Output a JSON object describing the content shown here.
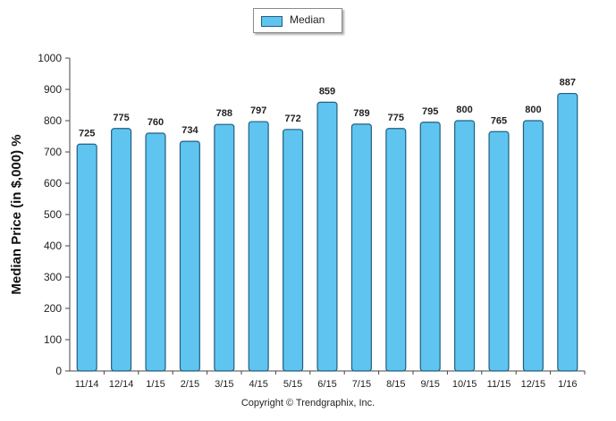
{
  "legend": {
    "label": "Median",
    "color": "#5fc4f0"
  },
  "footer": {
    "copyright": "Copyright © Trendgraphix, Inc."
  },
  "chart_data": {
    "type": "bar",
    "ylabel": "Median Price (in $,000) %",
    "ylim": [
      0,
      1000
    ],
    "yticks": [
      0,
      100,
      200,
      300,
      400,
      500,
      600,
      700,
      800,
      900,
      1000
    ],
    "categories": [
      "11/14",
      "12/14",
      "1/15",
      "2/15",
      "3/15",
      "4/15",
      "5/15",
      "6/15",
      "7/15",
      "8/15",
      "9/15",
      "10/15",
      "11/15",
      "12/15",
      "1/16"
    ],
    "series": [
      {
        "name": "Median",
        "values": [
          725,
          775,
          760,
          734,
          788,
          797,
          772,
          859,
          789,
          775,
          795,
          800,
          765,
          800,
          887
        ]
      }
    ],
    "data_labels": true,
    "grid": false,
    "legend_position": "top-center",
    "bar_color": "#5fc4f0",
    "bar_edge_color": "#1f5f80"
  }
}
